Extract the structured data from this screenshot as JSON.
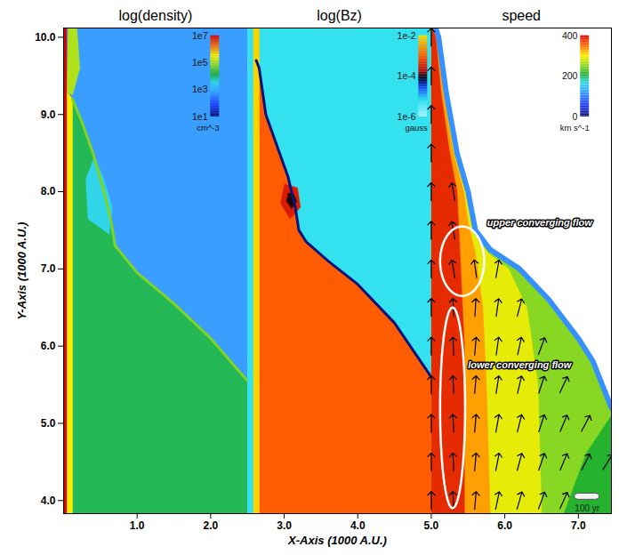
{
  "chart_data": {
    "type": "heatmap",
    "xlabel": "X-Axis (1000 A.U.)",
    "ylabel": "Y-Axis (1000 A.U.)",
    "xlim": [
      0,
      7.45
    ],
    "ylim": [
      3.83,
      10.12
    ],
    "xticks": [
      {
        "value": 1,
        "label": "1.0"
      },
      {
        "value": 2,
        "label": "2.0"
      },
      {
        "value": 3,
        "label": "3.0"
      },
      {
        "value": 4,
        "label": "4.0"
      },
      {
        "value": 5,
        "label": "5.0"
      },
      {
        "value": 6,
        "label": "6.0"
      },
      {
        "value": 7,
        "label": "7.0"
      }
    ],
    "yticks": [
      {
        "value": 4,
        "label": "4.0"
      },
      {
        "value": 5,
        "label": "5.0"
      },
      {
        "value": 6,
        "label": "6.0"
      },
      {
        "value": 7,
        "label": "7.0"
      },
      {
        "value": 8,
        "label": "8.0"
      },
      {
        "value": 9,
        "label": "9.0"
      },
      {
        "value": 10,
        "label": "10.0"
      }
    ],
    "panels": [
      {
        "title": "log(density)",
        "xlim": [
          0,
          2.5
        ],
        "colorbar": {
          "range": [
            10,
            10000000
          ],
          "log": true,
          "label": "cm^-3",
          "ticks": [
            {
              "value": 10000000,
              "label": "1e7"
            },
            {
              "value": 100000,
              "label": "1e5"
            },
            {
              "value": 1000,
              "label": "1e3"
            },
            {
              "value": 10,
              "label": "1e1"
            }
          ]
        },
        "regions": [
          {
            "value": 600,
            "points": [
              [
                0,
                3.83
              ],
              [
                2.5,
                3.83
              ],
              [
                2.5,
                10.12
              ],
              [
                0,
                10.12
              ]
            ]
          },
          {
            "value": 10000,
            "points": [
              [
                0.04,
                3.83
              ],
              [
                2.5,
                3.83
              ],
              [
                2.5,
                5.55
              ],
              [
                2.0,
                6.1
              ],
              [
                1.5,
                6.55
              ],
              [
                1.0,
                6.95
              ],
              [
                0.7,
                7.3
              ],
              [
                0.65,
                7.6
              ],
              [
                0.55,
                8.0
              ],
              [
                0.4,
                8.5
              ],
              [
                0.25,
                8.9
              ],
              [
                0.12,
                9.2
              ],
              [
                0.04,
                9.3
              ]
            ]
          },
          {
            "value": 3000,
            "points": [
              [
                0.33,
                7.65
              ],
              [
                0.62,
                7.45
              ],
              [
                0.66,
                7.8
              ],
              [
                0.55,
                8.15
              ],
              [
                0.42,
                8.45
              ],
              [
                0.3,
                8.15
              ]
            ]
          },
          {
            "value": 300000,
            "points": [
              [
                0.04,
                3.83
              ],
              [
                0.12,
                3.83
              ],
              [
                0.12,
                9.2
              ],
              [
                0.04,
                9.3
              ]
            ]
          },
          {
            "value": 100000,
            "points": [
              [
                0.04,
                9.3
              ],
              [
                0.12,
                9.25
              ],
              [
                0.22,
                9.6
              ],
              [
                0.18,
                10.12
              ],
              [
                0.06,
                10.12
              ]
            ]
          },
          {
            "value": 10000000,
            "points": [
              [
                0,
                3.83
              ],
              [
                0.04,
                3.83
              ],
              [
                0.04,
                10.12
              ],
              [
                0,
                10.12
              ]
            ]
          }
        ],
        "fronts": [
          {
            "value": 50000,
            "points": [
              [
                0.12,
                9.2
              ],
              [
                0.25,
                8.9
              ],
              [
                0.4,
                8.5
              ],
              [
                0.55,
                8.0
              ],
              [
                0.65,
                7.6
              ],
              [
                0.7,
                7.3
              ],
              [
                1.0,
                6.95
              ],
              [
                1.5,
                6.55
              ],
              [
                2.0,
                6.1
              ],
              [
                2.5,
                5.55
              ]
            ]
          }
        ]
      },
      {
        "title": "log(Bz)",
        "xlim": [
          2.5,
          5.0
        ],
        "colorbar": {
          "range": [
            1e-06,
            0.01
          ],
          "log": true,
          "label": "gauss",
          "ticks": [
            {
              "value": 0.01,
              "label": "1e-2"
            },
            {
              "value": 0.0001,
              "label": "1e-4"
            },
            {
              "value": 1e-06,
              "label": "1e-6"
            }
          ]
        },
        "regions": [
          {
            "value": 6e-06,
            "points": [
              [
                2.5,
                3.83
              ],
              [
                5.0,
                3.83
              ],
              [
                5.0,
                10.12
              ],
              [
                2.5,
                10.12
              ]
            ]
          },
          {
            "value": 0.001,
            "points": [
              [
                2.62,
                3.83
              ],
              [
                5.0,
                3.83
              ],
              [
                5.0,
                5.6
              ],
              [
                4.5,
                6.3
              ],
              [
                4.0,
                6.8
              ],
              [
                3.6,
                7.1
              ],
              [
                3.3,
                7.35
              ],
              [
                3.2,
                7.5
              ],
              [
                3.15,
                7.8
              ],
              [
                3.05,
                8.2
              ],
              [
                2.9,
                8.6
              ],
              [
                2.75,
                9.0
              ],
              [
                2.66,
                9.6
              ],
              [
                2.62,
                9.7
              ]
            ]
          },
          {
            "value": 0.0003,
            "points": [
              [
                2.95,
                7.85
              ],
              [
                3.08,
                7.65
              ],
              [
                3.22,
                7.8
              ],
              [
                3.18,
                8.05
              ],
              [
                3.0,
                8.1
              ]
            ]
          },
          {
            "value": 0.0001,
            "points": [
              [
                3.03,
                7.88
              ],
              [
                3.1,
                7.78
              ],
              [
                3.17,
                7.88
              ],
              [
                3.12,
                7.98
              ],
              [
                3.05,
                7.98
              ]
            ]
          },
          {
            "value": 0.008,
            "points": [
              [
                2.58,
                3.83
              ],
              [
                2.66,
                3.83
              ],
              [
                2.66,
                10.12
              ],
              [
                2.58,
                10.12
              ]
            ]
          }
        ],
        "fronts": [
          {
            "value": 5e-05,
            "points": [
              [
                2.62,
                9.7
              ],
              [
                2.66,
                9.6
              ],
              [
                2.75,
                9.0
              ],
              [
                2.9,
                8.6
              ],
              [
                3.05,
                8.2
              ],
              [
                3.15,
                7.8
              ],
              [
                3.2,
                7.5
              ],
              [
                3.3,
                7.35
              ],
              [
                3.6,
                7.1
              ],
              [
                4.0,
                6.8
              ],
              [
                4.5,
                6.3
              ],
              [
                5.0,
                5.6
              ]
            ]
          }
        ]
      },
      {
        "title": "speed",
        "xlim": [
          5.0,
          7.45
        ],
        "colorbar": {
          "range": [
            0,
            400
          ],
          "label": "km s^-1",
          "ticks": [
            400,
            200,
            0
          ]
        },
        "regions": [
          {
            "value": 250,
            "points": [
              [
                5.0,
                3.83
              ],
              [
                7.45,
                3.83
              ],
              [
                7.45,
                5.2
              ],
              [
                7.2,
                5.8
              ],
              [
                7.0,
                6.1
              ],
              [
                6.6,
                6.6
              ],
              [
                6.2,
                7.0
              ],
              [
                5.8,
                7.25
              ],
              [
                5.6,
                7.5
              ],
              [
                5.5,
                8.0
              ],
              [
                5.35,
                8.5
              ],
              [
                5.2,
                9.3
              ],
              [
                5.1,
                10.0
              ],
              [
                5.06,
                10.12
              ],
              [
                5.0,
                10.12
              ]
            ]
          },
          {
            "value": 210,
            "points": [
              [
                6.8,
                3.83
              ],
              [
                7.45,
                3.83
              ],
              [
                7.45,
                5.1
              ],
              [
                7.1,
                4.6
              ]
            ]
          },
          {
            "value": 290,
            "points": [
              [
                5.0,
                3.83
              ],
              [
                6.5,
                3.83
              ],
              [
                6.45,
                5.5
              ],
              [
                6.3,
                6.5
              ],
              [
                6.05,
                7.0
              ],
              [
                5.78,
                7.2
              ],
              [
                5.58,
                7.45
              ],
              [
                5.48,
                8.0
              ],
              [
                5.33,
                8.5
              ],
              [
                5.18,
                9.3
              ],
              [
                5.09,
                10.0
              ],
              [
                5.05,
                10.12
              ],
              [
                5.0,
                10.12
              ]
            ]
          },
          {
            "value": 330,
            "points": [
              [
                5.0,
                3.83
              ],
              [
                5.8,
                3.83
              ],
              [
                5.75,
                5.5
              ],
              [
                5.7,
                6.5
              ],
              [
                5.6,
                7.2
              ],
              [
                5.5,
                7.6
              ],
              [
                5.44,
                8.0
              ],
              [
                5.3,
                8.5
              ],
              [
                5.16,
                9.3
              ],
              [
                5.08,
                10.0
              ],
              [
                5.04,
                10.12
              ],
              [
                5.0,
                10.12
              ]
            ]
          },
          {
            "value": 380,
            "points": [
              [
                5.0,
                3.83
              ],
              [
                5.45,
                3.83
              ],
              [
                5.45,
                6.0
              ],
              [
                5.4,
                7.0
              ],
              [
                5.35,
                8.0
              ],
              [
                5.25,
                8.5
              ],
              [
                5.13,
                9.3
              ],
              [
                5.06,
                10.0
              ],
              [
                5.03,
                10.12
              ],
              [
                5.0,
                10.12
              ]
            ]
          }
        ],
        "fronts": [
          {
            "value": 110,
            "points": [
              [
                5.06,
                10.12
              ],
              [
                5.1,
                10.0
              ],
              [
                5.2,
                9.3
              ],
              [
                5.35,
                8.5
              ],
              [
                5.5,
                8.0
              ],
              [
                5.6,
                7.5
              ],
              [
                5.8,
                7.25
              ],
              [
                6.2,
                7.0
              ],
              [
                6.6,
                6.6
              ],
              [
                7.0,
                6.1
              ],
              [
                7.2,
                5.8
              ],
              [
                7.45,
                5.2
              ]
            ]
          }
        ]
      }
    ],
    "vectors": [
      [
        5.0,
        4.0,
        0
      ],
      [
        5.0,
        4.5,
        0
      ],
      [
        5.0,
        5.0,
        0
      ],
      [
        5.0,
        5.5,
        0
      ],
      [
        5.0,
        6.0,
        0
      ],
      [
        5.0,
        6.5,
        0
      ],
      [
        5.0,
        7.0,
        0
      ],
      [
        5.0,
        7.5,
        0
      ],
      [
        5.0,
        8.0,
        0
      ],
      [
        5.0,
        8.5,
        0
      ],
      [
        5.0,
        9.0,
        0
      ],
      [
        5.0,
        9.5,
        0
      ],
      [
        5.0,
        10.0,
        0
      ],
      [
        5.3,
        4.0,
        -3
      ],
      [
        5.3,
        4.5,
        -3
      ],
      [
        5.3,
        5.0,
        -3
      ],
      [
        5.3,
        5.5,
        -3
      ],
      [
        5.3,
        6.0,
        -3
      ],
      [
        5.3,
        6.5,
        -3
      ],
      [
        5.3,
        7.0,
        -10
      ],
      [
        5.3,
        7.5,
        -10
      ],
      [
        5.3,
        8.0,
        -10
      ],
      [
        5.6,
        4.0,
        5
      ],
      [
        5.6,
        4.5,
        5
      ],
      [
        5.6,
        5.0,
        5
      ],
      [
        5.6,
        5.5,
        5
      ],
      [
        5.6,
        6.0,
        5
      ],
      [
        5.6,
        6.5,
        3
      ],
      [
        5.6,
        7.0,
        -8
      ],
      [
        5.9,
        4.0,
        12
      ],
      [
        5.9,
        4.5,
        11
      ],
      [
        5.9,
        5.0,
        10
      ],
      [
        5.9,
        5.5,
        9
      ],
      [
        5.9,
        6.0,
        8
      ],
      [
        5.9,
        6.5,
        8
      ],
      [
        5.9,
        7.0,
        10
      ],
      [
        6.2,
        4.0,
        16
      ],
      [
        6.2,
        4.5,
        15
      ],
      [
        6.2,
        5.0,
        14
      ],
      [
        6.2,
        5.5,
        13
      ],
      [
        6.2,
        6.0,
        12
      ],
      [
        6.2,
        6.5,
        14
      ],
      [
        6.5,
        4.0,
        20
      ],
      [
        6.5,
        4.5,
        19
      ],
      [
        6.5,
        5.0,
        18
      ],
      [
        6.5,
        5.5,
        18
      ],
      [
        6.5,
        6.0,
        20
      ],
      [
        6.8,
        4.0,
        24
      ],
      [
        6.8,
        4.5,
        23
      ],
      [
        6.8,
        5.0,
        23
      ],
      [
        6.8,
        5.5,
        25
      ],
      [
        7.1,
        4.5,
        27
      ],
      [
        7.1,
        5.0,
        28
      ],
      [
        7.4,
        4.5,
        32
      ]
    ],
    "annotations": [
      {
        "text": "upper converging flow",
        "x": 5.76,
        "y": 7.6,
        "ellipse": {
          "cx": 5.42,
          "cy": 7.1,
          "rx": 0.3,
          "ry": 0.45
        }
      },
      {
        "text": "lower converging flow",
        "x": 5.5,
        "y": 5.75,
        "ellipse": {
          "cx": 5.29,
          "cy": 5.2,
          "rx": 0.17,
          "ry": 1.3
        }
      }
    ],
    "scale_bar": {
      "label": "100 yr",
      "x": 7.12,
      "y": 3.9
    }
  }
}
